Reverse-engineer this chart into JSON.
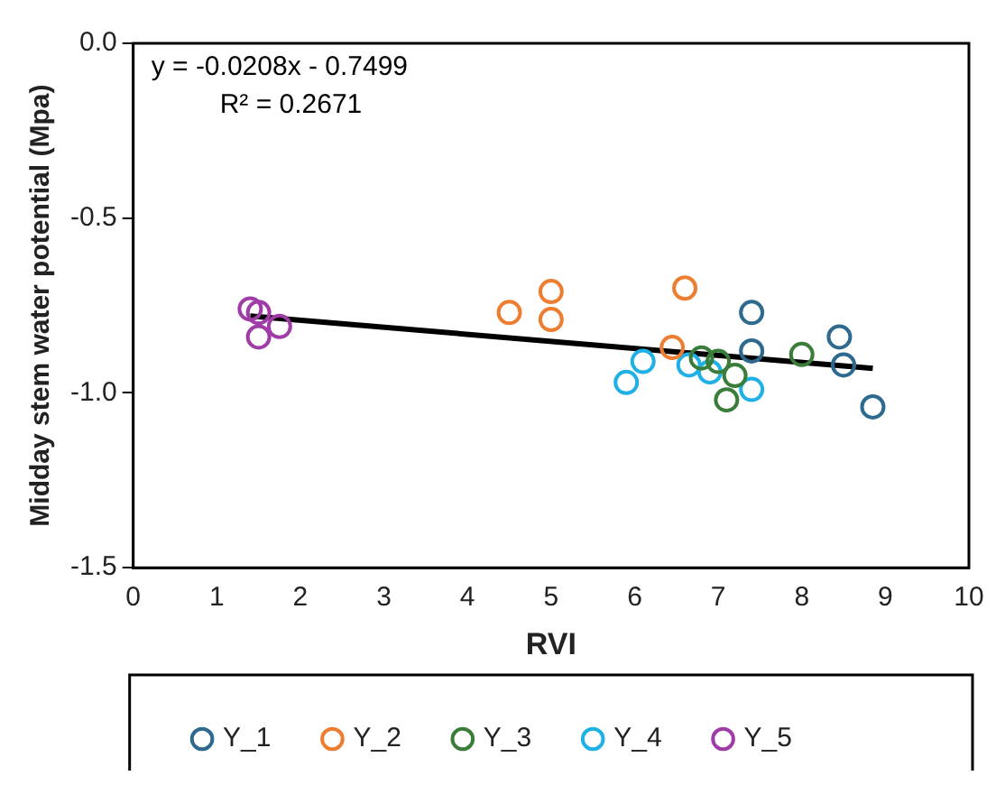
{
  "chart_data": {
    "type": "scatter",
    "xlabel": "RVI",
    "ylabel": "Midday stem water potential (Mpa)",
    "annotations": [
      "y = -0.0208x - 0.7499",
      "R² = 0.2671"
    ],
    "xlim": [
      0,
      10
    ],
    "xticks": [
      0,
      1,
      2,
      3,
      4,
      5,
      6,
      7,
      8,
      9,
      10
    ],
    "ylim": [
      -1.5,
      0
    ],
    "yticks": [
      {
        "value": -1.5,
        "label": "-1.5"
      },
      {
        "value": -1,
        "label": "-1.0"
      },
      {
        "value": -0.5,
        "label": "-0.5"
      },
      {
        "value": 0,
        "label": "0.0"
      }
    ],
    "grid": false,
    "legend": "bottom",
    "marker": "circle",
    "series": [
      {
        "name": "Y_1",
        "color": "#2e6a8f",
        "x": [
          7.4,
          7.4,
          8.45,
          8.5,
          8.85
        ],
        "values": [
          -0.77,
          -0.88,
          -0.84,
          -0.92,
          -1.04
        ]
      },
      {
        "name": "Y_2",
        "color": "#ed7d31",
        "x": [
          4.5,
          5.0,
          5.0,
          6.6,
          6.45
        ],
        "values": [
          -0.77,
          -0.71,
          -0.79,
          -0.7,
          -0.87
        ]
      },
      {
        "name": "Y_3",
        "color": "#3a7d3a",
        "x": [
          6.8,
          7.0,
          7.2,
          7.1,
          8.0
        ],
        "values": [
          -0.9,
          -0.91,
          -0.95,
          -1.02,
          -0.89
        ]
      },
      {
        "name": "Y_4",
        "color": "#1fb0e6",
        "x": [
          5.9,
          6.1,
          6.65,
          6.9,
          7.4
        ],
        "values": [
          -0.97,
          -0.91,
          -0.92,
          -0.94,
          -0.99
        ]
      },
      {
        "name": "Y_5",
        "color": "#a03ca8",
        "x": [
          1.4,
          1.5,
          1.75,
          1.5
        ],
        "values": [
          -0.76,
          -0.77,
          -0.81,
          -0.84
        ]
      },
      {
        "type": "line",
        "color": "#000000",
        "x": [
          1.4,
          8.85
        ],
        "values": [
          -0.78,
          -0.93
        ],
        "marker": "none",
        "line_style": "solid"
      }
    ]
  }
}
